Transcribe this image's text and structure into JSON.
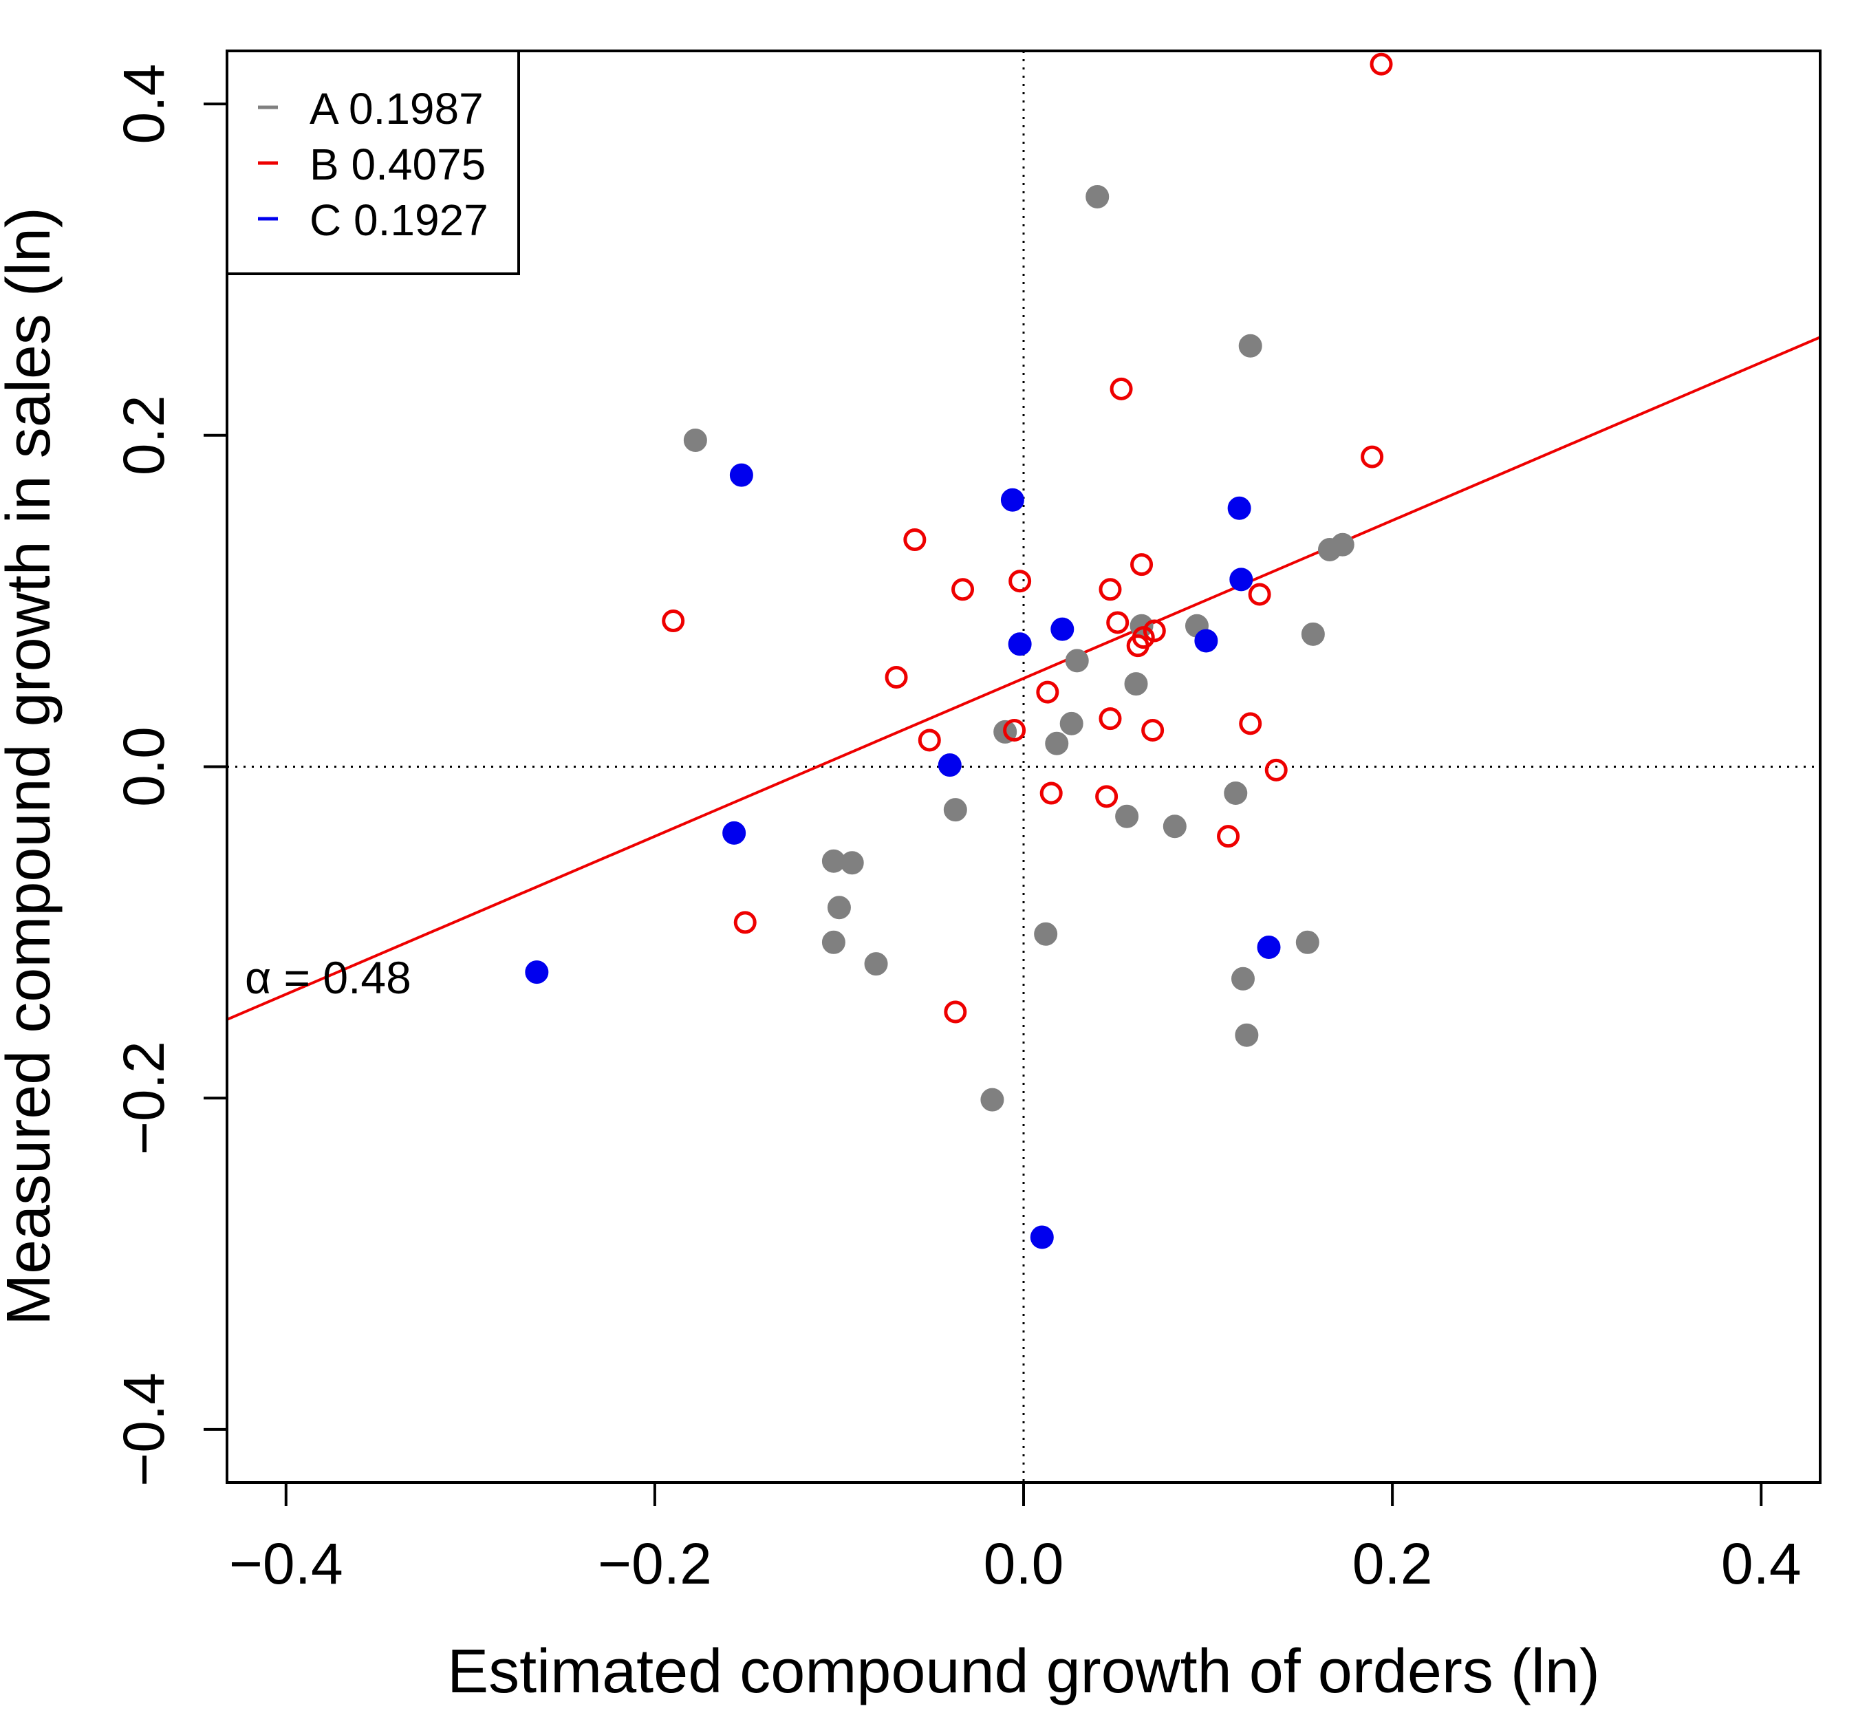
{
  "chart_data": {
    "type": "scatter",
    "title": "",
    "xlabel": "Estimated compound growth of orders (ln)",
    "ylabel": "Measured compound growth in sales (ln)",
    "xlim": [
      -0.432,
      0.432
    ],
    "ylim": [
      -0.432,
      0.432
    ],
    "x_ticks": [
      -0.4,
      -0.2,
      0.0,
      0.2,
      0.4
    ],
    "y_ticks": [
      -0.4,
      -0.2,
      0.0,
      0.2,
      0.4
    ],
    "x_tick_labels": [
      "−0.4",
      "−0.2",
      "0.0",
      "0.2",
      "0.4"
    ],
    "y_tick_labels": [
      "−0.4",
      "−0.2",
      "0.0",
      "0.2",
      "0.4"
    ],
    "grid": false,
    "reference_lines": {
      "x": 0,
      "y": 0,
      "style": "dotted"
    },
    "legend_position": "top-left",
    "fit_line": {
      "intercept": 0.0533,
      "slope": 0.4766,
      "color": "#ee0000"
    },
    "annotation": {
      "label": "α = 0.48",
      "x": -0.42,
      "y": -0.127
    },
    "series": [
      {
        "name": "A",
        "legend_label": "A 0.1987",
        "color": "#808080",
        "marker": "filled-circle",
        "points": [
          [
            -0.178,
            0.197
          ],
          [
            0.04,
            0.344
          ],
          [
            0.123,
            0.254
          ],
          [
            -0.103,
            -0.057
          ],
          [
            -0.093,
            -0.058
          ],
          [
            -0.1,
            -0.085
          ],
          [
            -0.103,
            -0.106
          ],
          [
            -0.08,
            -0.119
          ],
          [
            -0.037,
            -0.026
          ],
          [
            -0.01,
            0.021
          ],
          [
            0.018,
            0.014
          ],
          [
            0.026,
            0.026
          ],
          [
            0.029,
            0.064
          ],
          [
            0.061,
            0.05
          ],
          [
            0.064,
            0.085
          ],
          [
            0.094,
            0.085
          ],
          [
            0.056,
            -0.03
          ],
          [
            0.082,
            -0.036
          ],
          [
            0.115,
            -0.016
          ],
          [
            0.012,
            -0.101
          ],
          [
            -0.017,
            -0.201
          ],
          [
            0.119,
            -0.128
          ],
          [
            0.121,
            -0.162
          ],
          [
            0.154,
            -0.106
          ],
          [
            0.166,
            0.131
          ],
          [
            0.173,
            0.134
          ],
          [
            0.157,
            0.08
          ]
        ]
      },
      {
        "name": "B",
        "legend_label": "B 0.4075",
        "color": "#ee0000",
        "marker": "open-circle",
        "points": [
          [
            0.194,
            0.424
          ],
          [
            0.053,
            0.228
          ],
          [
            0.189,
            0.187
          ],
          [
            -0.059,
            0.137
          ],
          [
            -0.033,
            0.107
          ],
          [
            -0.002,
            0.112
          ],
          [
            0.047,
            0.107
          ],
          [
            0.064,
            0.122
          ],
          [
            0.128,
            0.104
          ],
          [
            0.051,
            0.087
          ],
          [
            0.062,
            0.073
          ],
          [
            0.065,
            0.078
          ],
          [
            0.071,
            0.082
          ],
          [
            -0.069,
            0.054
          ],
          [
            0.013,
            0.045
          ],
          [
            0.047,
            0.029
          ],
          [
            0.07,
            0.022
          ],
          [
            0.123,
            0.026
          ],
          [
            -0.005,
            0.022
          ],
          [
            -0.051,
            0.016
          ],
          [
            0.137,
            -0.002
          ],
          [
            0.015,
            -0.016
          ],
          [
            0.045,
            -0.018
          ],
          [
            0.111,
            -0.042
          ],
          [
            -0.151,
            -0.094
          ],
          [
            -0.037,
            -0.148
          ],
          [
            -0.19,
            0.088
          ]
        ]
      },
      {
        "name": "C",
        "legend_label": "C 0.1927",
        "color": "#0000ee",
        "marker": "filled-circle",
        "points": [
          [
            -0.153,
            0.176
          ],
          [
            -0.006,
            0.161
          ],
          [
            0.117,
            0.156
          ],
          [
            0.118,
            0.113
          ],
          [
            0.021,
            0.083
          ],
          [
            -0.002,
            0.074
          ],
          [
            0.099,
            0.076
          ],
          [
            -0.04,
            0.001
          ],
          [
            -0.157,
            -0.04
          ],
          [
            -0.264,
            -0.124
          ],
          [
            0.133,
            -0.109
          ],
          [
            0.01,
            -0.284
          ]
        ]
      }
    ]
  }
}
